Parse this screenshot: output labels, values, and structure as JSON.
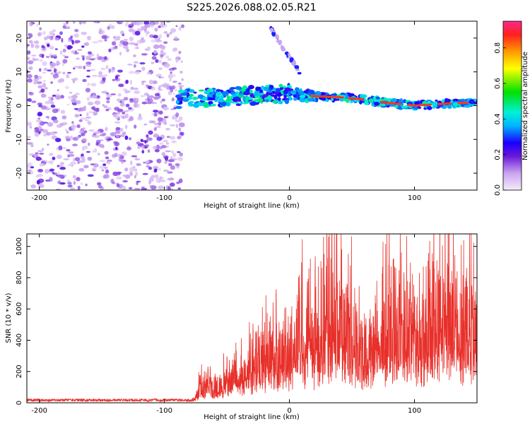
{
  "title": "S225.2026.088.02.05.R21",
  "chart_data": [
    {
      "type": "heatmap",
      "name": "spectrogram",
      "xlabel": "Height of straight line (km)",
      "ylabel": "Frequency (Hz)",
      "xlim": [
        -210,
        150
      ],
      "ylim": [
        -25,
        25
      ],
      "xticks": [
        -200,
        -100,
        0,
        100
      ],
      "yticks": [
        20,
        10,
        0,
        -10,
        -20
      ],
      "colorbar": {
        "label": "Normalized spectral amplitude",
        "range": [
          0.0,
          0.95
        ],
        "ticks": [
          0.0,
          0.2,
          0.4,
          0.6,
          0.8
        ]
      },
      "trend_line": {
        "x": [
          -90,
          -60,
          -30,
          0,
          20,
          40,
          60,
          80,
          100,
          120,
          150
        ],
        "y": [
          2.0,
          2.5,
          3.0,
          3.5,
          2.8,
          2.5,
          1.8,
          0.8,
          0.0,
          0.5,
          1.0
        ]
      },
      "streak": {
        "x": [
          -15,
          -10,
          -5,
          0,
          5,
          8
        ],
        "y": [
          23,
          20,
          17,
          14.5,
          12,
          9.5
        ]
      }
    },
    {
      "type": "line",
      "name": "snr",
      "xlabel": "Height of straight line (km)",
      "ylabel": "SNR (10 * v/v)",
      "xlim": [
        -210,
        150
      ],
      "ylim": [
        0,
        1080
      ],
      "xticks": [
        -200,
        -100,
        0,
        100
      ],
      "yticks": [
        0,
        200,
        400,
        600,
        800,
        1000
      ],
      "color": "#e8302a",
      "series": [
        {
          "name": "SNR",
          "envelope_x": [
            -210,
            -80,
            -75,
            -70,
            -60,
            -50,
            -40,
            -30,
            -20,
            -10,
            0,
            10,
            20,
            30,
            40,
            50,
            60,
            70,
            80,
            90,
            100,
            110,
            120,
            130,
            140,
            150
          ],
          "envelope_y": [
            15,
            15,
            40,
            170,
            130,
            180,
            230,
            300,
            370,
            420,
            440,
            560,
            520,
            740,
            720,
            560,
            370,
            520,
            640,
            670,
            520,
            640,
            720,
            680,
            640,
            600
          ]
        }
      ]
    }
  ]
}
